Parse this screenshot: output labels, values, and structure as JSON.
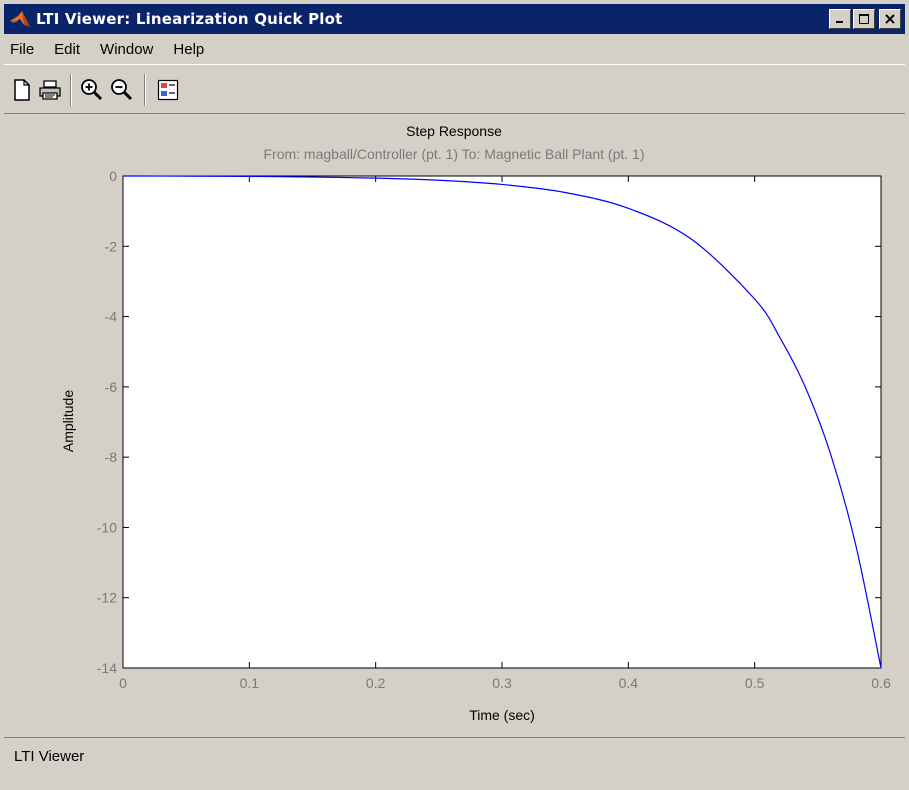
{
  "window": {
    "title": "LTI Viewer: Linearization Quick Plot"
  },
  "menu": [
    "File",
    "Edit",
    "Window",
    "Help"
  ],
  "toolbar": {
    "icons": [
      "new-file-icon",
      "print-icon",
      "zoom-in-icon",
      "zoom-out-icon",
      "plot-config-icon"
    ]
  },
  "plot": {
    "title": "Step Response",
    "subtitle": "From: magball/Controller (pt. 1)  To: Magnetic Ball Plant (pt. 1)",
    "xlabel": "Time (sec)",
    "ylabel": "Amplitude"
  },
  "chart_data": {
    "type": "line",
    "title": "Step Response",
    "subtitle": "From: magball/Controller (pt. 1)  To: Magnetic Ball Plant (pt. 1)",
    "xlabel": "Time (sec)",
    "ylabel": "Amplitude",
    "xlim": [
      0,
      0.6
    ],
    "ylim": [
      -14,
      0
    ],
    "xticks": [
      0,
      0.1,
      0.2,
      0.3,
      0.4,
      0.5,
      0.6
    ],
    "yticks": [
      0,
      -2,
      -4,
      -6,
      -8,
      -10,
      -12,
      -14
    ],
    "grid": false,
    "series": [
      {
        "color": "#0000ff",
        "x": [
          0,
          0.05,
          0.1,
          0.15,
          0.2,
          0.25,
          0.3,
          0.35,
          0.4,
          0.45,
          0.5,
          0.52,
          0.54,
          0.56,
          0.58,
          0.6
        ],
        "y": [
          0,
          -0.004,
          -0.012,
          -0.03,
          -0.06,
          -0.12,
          -0.24,
          -0.47,
          -0.92,
          -1.8,
          -3.5,
          -4.6,
          -6.0,
          -7.9,
          -10.5,
          -14.0
        ]
      }
    ]
  },
  "status": {
    "text": "LTI Viewer"
  },
  "colors": {
    "titlebar": "#0a246a",
    "background": "#d4d0c8",
    "line": "#0000ff"
  }
}
